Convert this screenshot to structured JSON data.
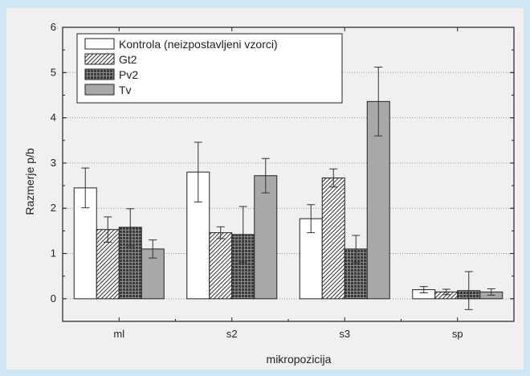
{
  "chart_data": {
    "type": "bar",
    "title": "",
    "xlabel": "mikropozicija",
    "ylabel": "Razmerje p/b",
    "categories": [
      "ml",
      "s2",
      "s3",
      "sp"
    ],
    "ylim": [
      -0.5,
      6
    ],
    "yticks": [
      "0",
      "1",
      "2",
      "3",
      "4",
      "5",
      "6"
    ],
    "grid": true,
    "legend_position": "top-left",
    "series": [
      {
        "name": "Kontrola (neizpostavljeni vzorci)",
        "values": [
          2.45,
          2.8,
          1.77,
          0.2
        ],
        "errors": [
          0.44,
          0.66,
          0.31,
          0.07
        ],
        "fill": "#ffffff",
        "pattern": "none"
      },
      {
        "name": "Gt2",
        "values": [
          1.53,
          1.46,
          2.67,
          0.15
        ],
        "errors": [
          0.28,
          0.13,
          0.2,
          0.06
        ],
        "fill": "#ffffff",
        "pattern": "hatch"
      },
      {
        "name": "Pv2",
        "values": [
          1.58,
          1.42,
          1.1,
          0.18
        ],
        "errors": [
          0.41,
          0.62,
          0.3,
          0.42
        ],
        "fill": "#555555",
        "pattern": "grid"
      },
      {
        "name": "Tv",
        "values": [
          1.1,
          2.72,
          4.36,
          0.15
        ],
        "errors": [
          0.2,
          0.38,
          0.76,
          0.07
        ],
        "fill": "#a8a8a8",
        "pattern": "none"
      }
    ]
  }
}
